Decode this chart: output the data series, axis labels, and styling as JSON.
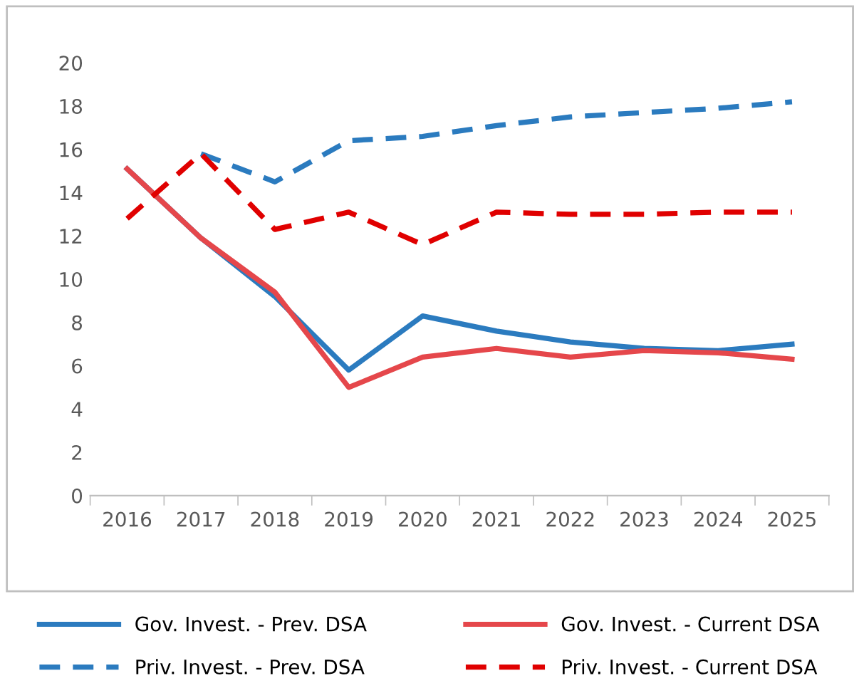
{
  "chart_data": {
    "type": "line",
    "categories": [
      "2016",
      "2017",
      "2018",
      "2019",
      "2020",
      "2021",
      "2022",
      "2023",
      "2024",
      "2025"
    ],
    "series": [
      {
        "name": "Gov. Invest. - Prev. DSA",
        "color": "#2b7bbf",
        "line_style": "solid",
        "values": [
          15.1,
          11.9,
          9.2,
          5.8,
          8.3,
          7.6,
          7.1,
          6.8,
          6.7,
          7.0
        ]
      },
      {
        "name": "Priv. Invest. - Prev. DSA",
        "color": "#2b7bbf",
        "line_style": "dashed",
        "values": [
          null,
          15.8,
          14.5,
          16.4,
          16.6,
          17.1,
          17.5,
          17.7,
          17.9,
          18.2
        ]
      },
      {
        "name": "Gov. Invest. - Current DSA",
        "color": "#e5474b",
        "line_style": "solid",
        "values": [
          15.1,
          11.9,
          9.4,
          5.0,
          6.4,
          6.8,
          6.4,
          6.7,
          6.6,
          6.3
        ]
      },
      {
        "name": "Priv. Invest. - Current DSA",
        "color": "#e00000",
        "line_style": "dashed",
        "values": [
          12.8,
          15.8,
          12.3,
          13.1,
          11.6,
          13.1,
          13.0,
          13.0,
          13.1,
          13.1
        ]
      }
    ],
    "ylim": [
      0,
      20
    ],
    "yticks": [
      0,
      2,
      4,
      6,
      8,
      10,
      12,
      14,
      16,
      18,
      20
    ],
    "grid": false,
    "legend": "bottom",
    "marker": "none"
  }
}
